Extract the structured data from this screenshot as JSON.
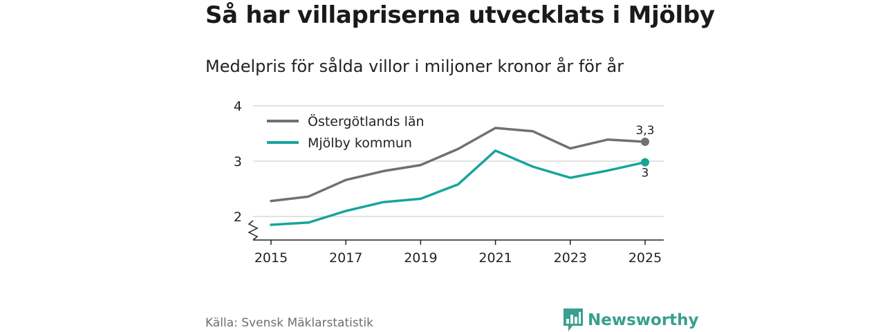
{
  "title": "Så har villapriserna utvecklats i Mjölby",
  "subtitle": "Medelpris för sålda villor i miljoner kronor år för år",
  "source": "Källa: Svensk Mäklarstatistik",
  "brand": {
    "name": "Newsworthy",
    "color": "#37a08e",
    "icon": "bar-chart-speech-bubble-icon"
  },
  "chart_data": {
    "type": "line",
    "x": [
      2015,
      2016,
      2017,
      2018,
      2019,
      2020,
      2021,
      2022,
      2023,
      2024,
      2025
    ],
    "x_ticks": [
      2015,
      2017,
      2019,
      2021,
      2023,
      2025
    ],
    "y_ticks": [
      2,
      3,
      4
    ],
    "ylim": [
      1.58,
      4
    ],
    "axis_break": true,
    "grid": true,
    "legend_position": "top-left",
    "series": [
      {
        "name": "Östergötlands län",
        "color": "#6f6f76",
        "values": [
          2.28,
          2.36,
          2.66,
          2.82,
          2.93,
          3.22,
          3.6,
          3.54,
          3.23,
          3.39,
          3.35
        ],
        "end_label": "3,3"
      },
      {
        "name": "Mjölby kommun",
        "color": "#17a59a",
        "values": [
          1.85,
          1.89,
          2.1,
          2.26,
          2.32,
          2.58,
          3.19,
          2.9,
          2.7,
          2.83,
          2.98
        ],
        "end_label": "3"
      }
    ]
  }
}
